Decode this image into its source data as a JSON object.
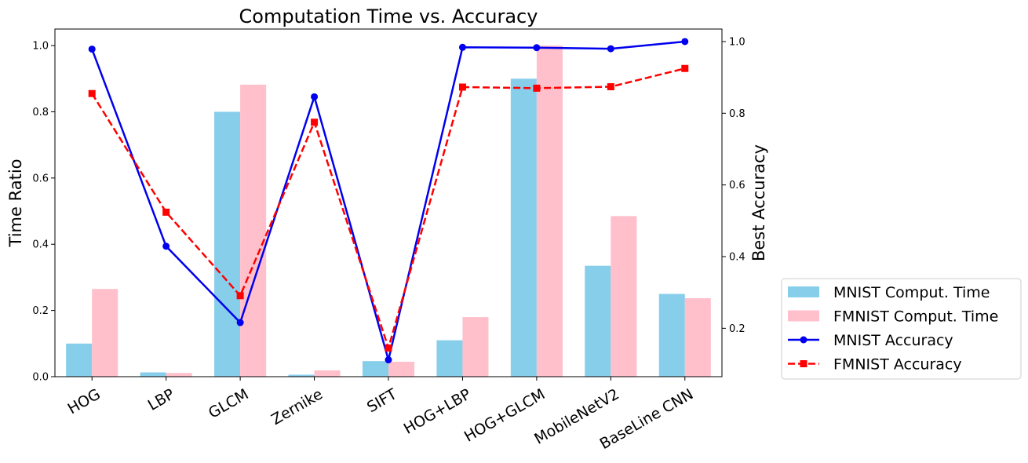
{
  "chart_data": {
    "type": "bar",
    "title": "Computation Time vs. Accuracy",
    "ylabel": "Time Ratio",
    "ylabel_right": "Best Accuracy",
    "categories": [
      "HOG",
      "LBP",
      "GLCM",
      "Zernike",
      "SIFT",
      "HOG+LBP",
      "HOG+GLCM",
      "MobileNetV2",
      "BaseLine CNN"
    ],
    "ylim": [
      0,
      1.05
    ],
    "ylim_right": [
      0.065,
      1.035
    ],
    "yticks": [
      "0.0",
      "0.2",
      "0.4",
      "0.6",
      "0.8",
      "1.0"
    ],
    "yticks_right": [
      "0.2",
      "0.4",
      "0.6",
      "0.8",
      "1.0"
    ],
    "bar_series": [
      {
        "name": "MNIST Comput. Time",
        "color": "#87ceeb",
        "values": [
          0.1,
          0.013,
          0.8,
          0.006,
          0.047,
          0.11,
          0.9,
          0.335,
          0.25
        ]
      },
      {
        "name": "FMNIST Comput. Time",
        "color": "#ffc0cb",
        "values": [
          0.265,
          0.011,
          0.882,
          0.019,
          0.045,
          0.18,
          1.0,
          0.485,
          0.237
        ]
      }
    ],
    "line_series": [
      {
        "name": "MNIST Accuracy",
        "color": "#0000ee",
        "marker": "circle",
        "style": "solid",
        "values": [
          0.979,
          0.429,
          0.216,
          0.846,
          0.112,
          0.984,
          0.983,
          0.98,
          1.0
        ]
      },
      {
        "name": "FMNIST Accuracy",
        "color": "#ff0000",
        "marker": "square",
        "style": "dashed",
        "values": [
          0.855,
          0.524,
          0.291,
          0.775,
          0.145,
          0.873,
          0.87,
          0.874,
          0.925
        ]
      }
    ],
    "legend_position": "lower right, outside plot",
    "grid": false
  }
}
